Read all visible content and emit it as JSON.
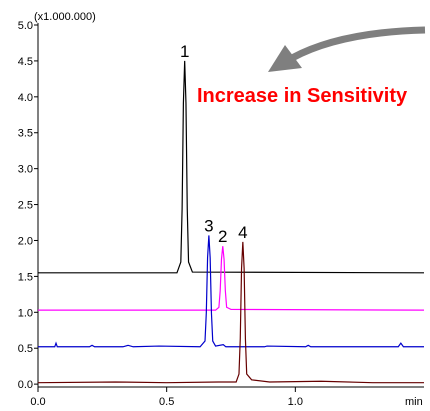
{
  "chart_data": {
    "type": "line",
    "y_unit_label": "(x1.000.000)",
    "x_label": "min",
    "annotation": "Increase in Sensitivity",
    "xlim": [
      0,
      1.5
    ],
    "xticks": [
      {
        "value": 0,
        "label": "0.0"
      },
      {
        "value": 0.5,
        "label": "0.5"
      },
      {
        "value": 1.0,
        "label": "1.0"
      }
    ],
    "ylim": [
      -0.04,
      5.0
    ],
    "yticks": [
      {
        "value": 0,
        "label": "0.0"
      },
      0.5,
      {
        "value": 1.0,
        "label": "1.0"
      },
      1.5,
      {
        "value": 2.0,
        "label": "2.0"
      },
      2.5,
      {
        "value": 3.0,
        "label": "3.0"
      },
      3.5,
      {
        "value": 4.0,
        "label": "4.0"
      },
      4.5,
      {
        "value": 5.0,
        "label": "5.0"
      }
    ],
    "series": [
      {
        "label": "1",
        "color": "#000000",
        "x": [
          0,
          0.54,
          0.555,
          0.56,
          0.565,
          0.57,
          0.575,
          0.58,
          0.585,
          0.6,
          1.5
        ],
        "values": [
          1.55,
          1.55,
          1.7,
          2.44,
          3.91,
          4.5,
          3.91,
          2.44,
          1.7,
          1.56,
          1.55
        ]
      },
      {
        "label": "2",
        "color": "#ff00ff",
        "x": [
          0,
          0.69,
          0.703,
          0.708,
          0.713,
          0.718,
          0.723,
          0.728,
          0.733,
          0.75,
          1.5
        ],
        "values": [
          1.03,
          1.03,
          1.07,
          1.3,
          1.74,
          1.92,
          1.74,
          1.3,
          1.07,
          1.04,
          1.03
        ]
      },
      {
        "label": "3",
        "color": "#0000cc",
        "x": [
          0,
          0.065,
          0.07,
          0.075,
          0.2,
          0.21,
          0.22,
          0.33,
          0.35,
          0.37,
          0.47,
          0.63,
          0.649,
          0.654,
          0.659,
          0.664,
          0.669,
          0.674,
          0.679,
          0.69,
          0.72,
          0.73,
          0.88,
          0.89,
          1.04,
          1.05,
          1.06,
          1.4,
          1.41,
          1.42,
          1.5
        ],
        "values": [
          0.52,
          0.52,
          0.57,
          0.52,
          0.52,
          0.54,
          0.52,
          0.52,
          0.54,
          0.52,
          0.53,
          0.52,
          0.6,
          0.99,
          1.76,
          2.07,
          1.76,
          0.99,
          0.6,
          0.53,
          0.55,
          0.52,
          0.52,
          0.53,
          0.52,
          0.54,
          0.52,
          0.52,
          0.57,
          0.52,
          0.52
        ]
      },
      {
        "label": "4",
        "color": "#660000",
        "x": [
          0,
          0.3,
          0.5,
          0.7,
          0.77,
          0.781,
          0.786,
          0.791,
          0.796,
          0.801,
          0.806,
          0.811,
          0.83,
          0.9,
          1.1,
          1.3,
          1.5
        ],
        "values": [
          0.02,
          0.03,
          0.02,
          0.03,
          0.03,
          0.14,
          0.63,
          1.61,
          1.98,
          1.61,
          0.63,
          0.14,
          0.06,
          0.03,
          0.04,
          0.02,
          0.02
        ]
      }
    ]
  }
}
